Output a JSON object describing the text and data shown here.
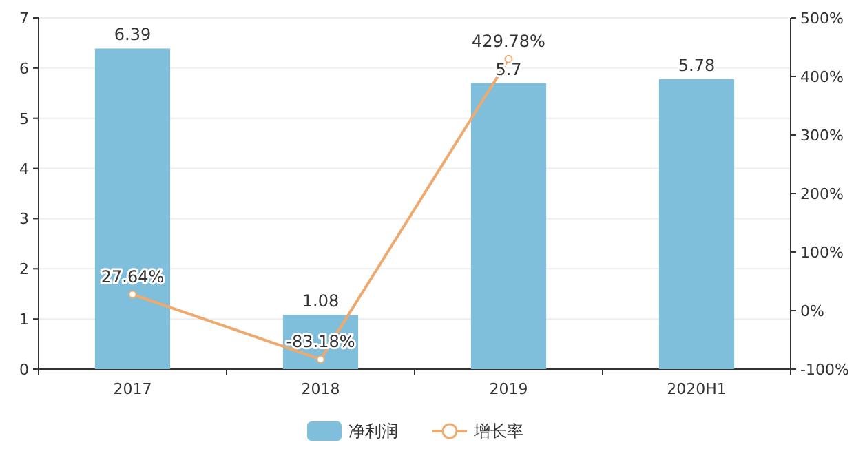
{
  "chart_data": {
    "type": "bar",
    "categories": [
      "2017",
      "2018",
      "2019",
      "2020H1"
    ],
    "series": [
      {
        "name": "净利润",
        "color": "#7fbfdb",
        "values": [
          6.39,
          1.08,
          5.7,
          5.78
        ],
        "value_labels": [
          "6.39",
          "1.08",
          "5.7",
          "5.78"
        ]
      },
      {
        "name": "增长率",
        "type": "line",
        "axis": "y2",
        "color": "#eeaa6e",
        "marker": "circle",
        "values": [
          27.64,
          -83.18,
          429.78,
          null
        ],
        "value_labels": [
          "27.64%",
          "-83.18%",
          "429.78%",
          null
        ]
      }
    ],
    "ylim": [
      0,
      7
    ],
    "yticks": [
      0,
      1,
      2,
      3,
      4,
      5,
      6,
      7
    ],
    "y2lim": [
      -100,
      500
    ],
    "y2ticks": [
      {
        "value": -100,
        "label": "-100%"
      },
      {
        "value": 0,
        "label": "0%"
      },
      {
        "value": 100,
        "label": "100%"
      },
      {
        "value": 200,
        "label": "200%"
      },
      {
        "value": 300,
        "label": "300%"
      },
      {
        "value": 400,
        "label": "400%"
      },
      {
        "value": 500,
        "label": "500%"
      }
    ],
    "grid": "y",
    "legend": "bottom"
  }
}
